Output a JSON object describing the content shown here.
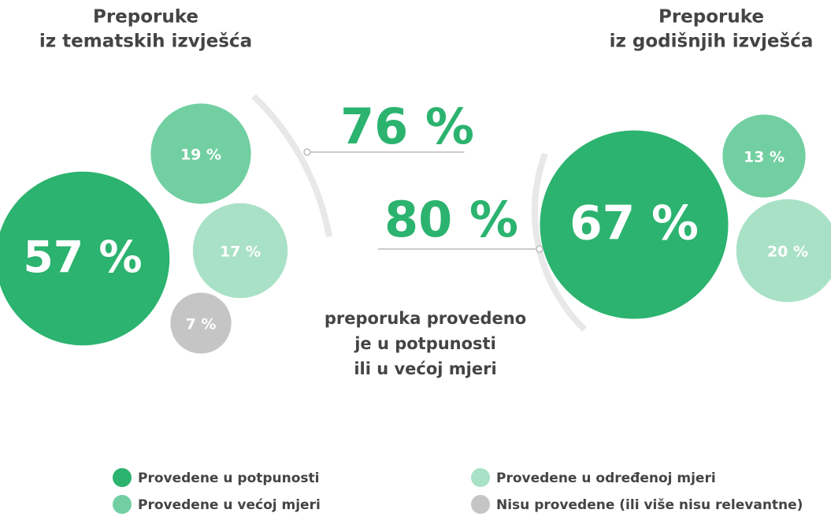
{
  "chart_data": [
    {
      "type": "bubble",
      "title": [
        "Preporuke",
        "iz tematskih izvješća"
      ],
      "values": [
        57,
        19,
        17,
        7
      ],
      "value_labels": [
        "57 %",
        "19 %",
        "17 %",
        "7 %"
      ],
      "colors": [
        "#2bb36f",
        "#72cfa1",
        "#a9e1c6",
        "#c5c5c5"
      ]
    },
    {
      "type": "bubble",
      "title": [
        "Preporuke",
        "iz godišnjih izvješća"
      ],
      "values": [
        67,
        13,
        20
      ],
      "value_labels": [
        "67 %",
        "13 %",
        "20 %"
      ],
      "colors": [
        "#2bb36f",
        "#72cfa1",
        "#a9e1c6"
      ]
    }
  ],
  "totals": {
    "values": [
      76,
      80
    ],
    "value_labels": [
      "76 %",
      "80 %"
    ],
    "color": "#2bb36f"
  },
  "annotation": [
    "preporuka provedeno",
    "je u potpunosti",
    "ili u većoj mjeri"
  ],
  "legend": {
    "names": [
      "Provedene u potpunosti",
      "Provedene u većoj mjeri",
      "Provedene u određenoj mjeri",
      "Nisu provedene (ili više nisu relevantne)"
    ],
    "colors": [
      "#2bb36f",
      "#72cfa1",
      "#a9e1c6",
      "#c5c5c5"
    ]
  }
}
